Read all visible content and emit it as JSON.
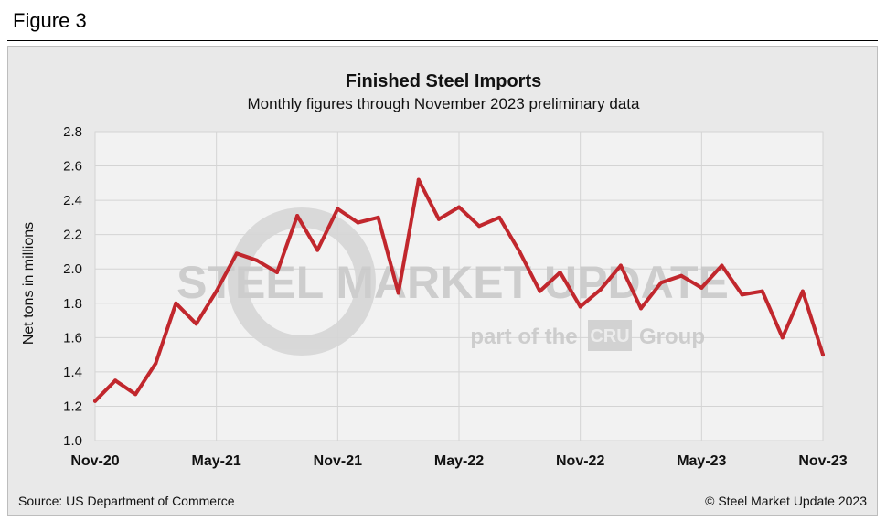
{
  "figure_label": "Figure 3",
  "source": "Source: US Department of Commerce",
  "copyright": "© Steel Market Update 2023",
  "watermark": {
    "brand": "STEEL MARKET UPDATE",
    "tagline_prefix": "part of the",
    "tagline_logo": "CRU",
    "tagline_suffix": "Group"
  },
  "colors": {
    "line": "#c1272d",
    "grid": "#d4d4d4",
    "plot_bg": "#f2f2f2",
    "panel_bg": "#e9e9e9"
  },
  "chart_data": {
    "type": "line",
    "title": "Finished Steel Imports",
    "subtitle": "Monthly figures through November 2023 preliminary data",
    "ylabel": "Net tons in millions",
    "xlabel": "",
    "ylim": [
      1.0,
      2.8
    ],
    "yticks": [
      "1.0",
      "1.2",
      "1.4",
      "1.6",
      "1.8",
      "2.0",
      "2.2",
      "2.4",
      "2.6",
      "2.8"
    ],
    "xticks": [
      "Nov-20",
      "May-21",
      "Nov-21",
      "May-22",
      "Nov-22",
      "May-23",
      "Nov-23"
    ],
    "grid": true,
    "legend": "none",
    "series": [
      {
        "x": [
          "2020-11",
          "2020-12",
          "2021-01",
          "2021-02",
          "2021-03",
          "2021-04",
          "2021-05",
          "2021-06",
          "2021-07",
          "2021-08",
          "2021-09",
          "2021-10",
          "2021-11",
          "2021-12",
          "2022-01",
          "2022-02",
          "2022-03",
          "2022-04",
          "2022-05",
          "2022-06",
          "2022-07",
          "2022-08",
          "2022-09",
          "2022-10",
          "2022-11",
          "2022-12",
          "2023-01",
          "2023-02",
          "2023-03",
          "2023-04",
          "2023-05",
          "2023-06",
          "2023-07",
          "2023-08",
          "2023-09",
          "2023-10",
          "2023-11"
        ],
        "values": [
          1.23,
          1.35,
          1.27,
          1.45,
          1.8,
          1.68,
          1.87,
          2.09,
          2.05,
          1.98,
          2.31,
          2.11,
          2.35,
          2.27,
          2.3,
          1.86,
          2.52,
          2.29,
          2.36,
          2.25,
          2.3,
          2.1,
          1.87,
          1.98,
          1.78,
          1.88,
          2.02,
          1.77,
          1.92,
          1.96,
          1.89,
          2.02,
          1.85,
          1.87,
          1.6,
          1.87,
          1.5
        ]
      }
    ]
  }
}
